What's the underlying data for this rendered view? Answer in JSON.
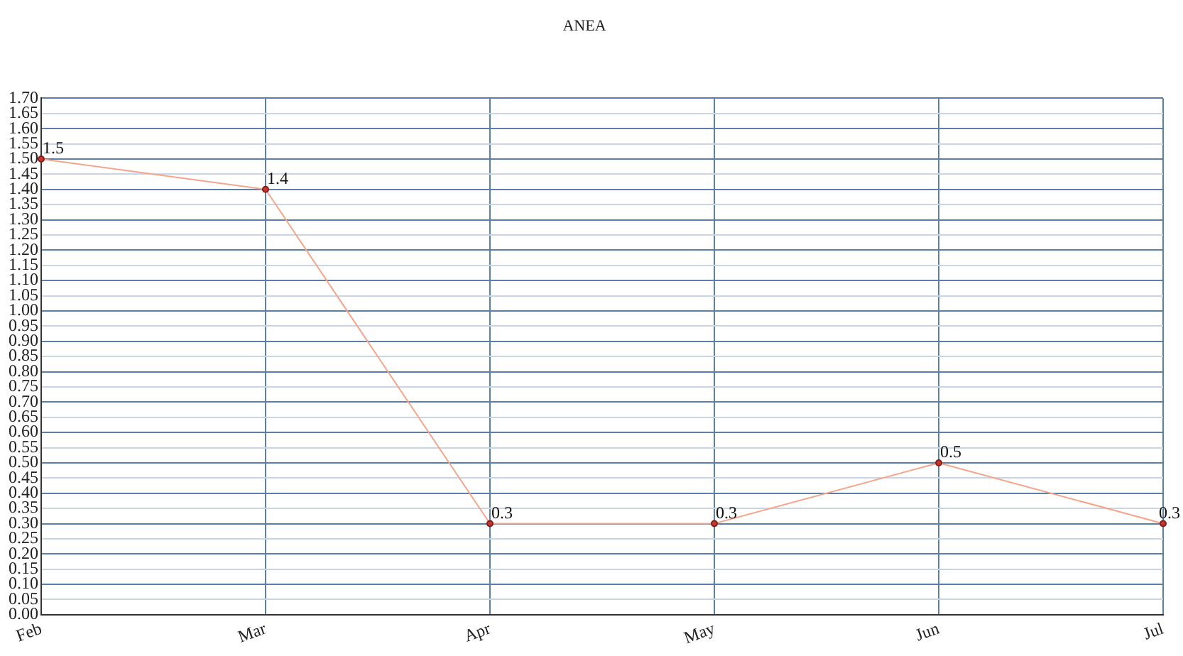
{
  "chart_data": {
    "type": "line",
    "title": "ANEA",
    "categories": [
      "Feb",
      "Mar",
      "Apr",
      "May",
      "Jun",
      "Jul"
    ],
    "series": [
      {
        "color": "#f4a58a",
        "values": [
          1.5,
          1.4,
          0.3,
          0.3,
          0.5,
          0.3
        ]
      }
    ],
    "ylim": [
      0,
      1.7
    ],
    "yticks": [
      {
        "value": 0,
        "label": "0.00"
      },
      {
        "value": 0.05,
        "label": "0.05"
      },
      {
        "value": 0.1,
        "label": "0.10"
      },
      {
        "value": 0.15,
        "label": "0.15"
      },
      {
        "value": 0.2,
        "label": "0.20"
      },
      {
        "value": 0.25,
        "label": "0.25"
      },
      {
        "value": 0.3,
        "label": "0.30"
      },
      {
        "value": 0.35,
        "label": "0.35"
      },
      {
        "value": 0.4,
        "label": "0.40"
      },
      {
        "value": 0.45,
        "label": "0.45"
      },
      {
        "value": 0.5,
        "label": "0.50"
      },
      {
        "value": 0.55,
        "label": "0.55"
      },
      {
        "value": 0.6,
        "label": "0.60"
      },
      {
        "value": 0.65,
        "label": "0.65"
      },
      {
        "value": 0.7,
        "label": "0.70"
      },
      {
        "value": 0.75,
        "label": "0.75"
      },
      {
        "value": 0.8,
        "label": "0.80"
      },
      {
        "value": 0.85,
        "label": "0.85"
      },
      {
        "value": 0.9,
        "label": "0.90"
      },
      {
        "value": 0.95,
        "label": "0.95"
      },
      {
        "value": 1,
        "label": "1.00"
      },
      {
        "value": 1.05,
        "label": "1.05"
      },
      {
        "value": 1.1,
        "label": "1.10"
      },
      {
        "value": 1.15,
        "label": "1.15"
      },
      {
        "value": 1.2,
        "label": "1.20"
      },
      {
        "value": 1.25,
        "label": "1.25"
      },
      {
        "value": 1.3,
        "label": "1.30"
      },
      {
        "value": 1.35,
        "label": "1.35"
      },
      {
        "value": 1.4,
        "label": "1.40"
      },
      {
        "value": 1.45,
        "label": "1.45"
      },
      {
        "value": 1.5,
        "label": "1.50"
      },
      {
        "value": 1.55,
        "label": "1.55"
      },
      {
        "value": 1.6,
        "label": "1.60"
      },
      {
        "value": 1.65,
        "label": "1.65"
      },
      {
        "value": 1.7,
        "label": "1.70"
      }
    ],
    "grid": true,
    "legend": false,
    "marker": "circle",
    "line_style": "solid",
    "data_labels": true
  }
}
